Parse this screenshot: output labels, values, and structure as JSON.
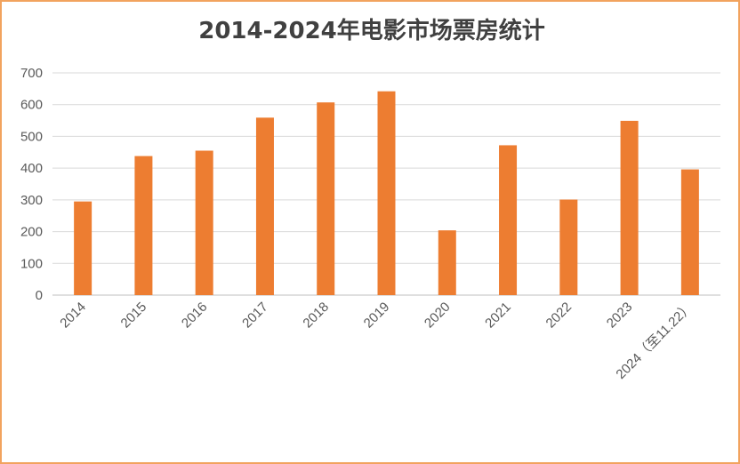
{
  "chart_data": {
    "type": "bar",
    "title": "2014-2024年电影市场票房统计",
    "xlabel": "",
    "ylabel": "",
    "categories": [
      "2014",
      "2015",
      "2016",
      "2017",
      "2018",
      "2019",
      "2020",
      "2021",
      "2022",
      "2023",
      "2024（至11.22）"
    ],
    "values": [
      295,
      438,
      455,
      559,
      607,
      642,
      204,
      472,
      301,
      549,
      396
    ],
    "ylim": [
      0,
      700
    ],
    "yticks": [
      "0",
      "100",
      "200",
      "300",
      "400",
      "500",
      "600",
      "700"
    ],
    "grid": true,
    "legend": "none",
    "bar_color": "#ed7d31",
    "grid_color": "#d9d9d9",
    "border_color": "#f2a35e"
  }
}
